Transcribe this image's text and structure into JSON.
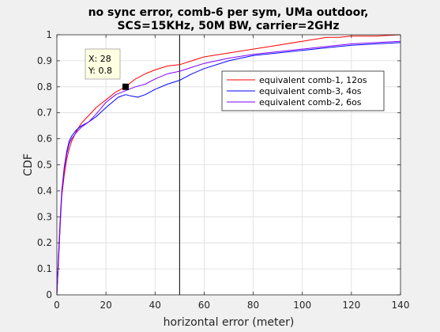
{
  "chart_data": {
    "type": "line",
    "title": [
      "no sync error, comb-6 per sym, UMa outdoor,",
      "SCS=15KHz, 50M BW, carrier=2GHz"
    ],
    "xlabel": "horizontal error (meter)",
    "ylabel": "CDF",
    "xlim": [
      0,
      140
    ],
    "ylim": [
      0,
      1
    ],
    "xticks": [
      "0",
      "20",
      "40",
      "60",
      "80",
      "100",
      "120",
      "140"
    ],
    "yticks": [
      "0",
      "0.1",
      "0.2",
      "0.3",
      "0.4",
      "0.5",
      "0.6",
      "0.7",
      "0.8",
      "0.9",
      "1"
    ],
    "grid": true,
    "legend_position": "upper-right",
    "vertical_reference_line_x": 50,
    "datatip": {
      "x": 28,
      "y": 0.8,
      "lines": [
        "X: 28",
        "Y: 0.8"
      ]
    },
    "series": [
      {
        "name": "equivalent comb-1, 12os",
        "color": "#ff0000",
        "points": [
          [
            0,
            0
          ],
          [
            0.5,
            0.1
          ],
          [
            1,
            0.2
          ],
          [
            1.5,
            0.3
          ],
          [
            2,
            0.38
          ],
          [
            3,
            0.46
          ],
          [
            4,
            0.52
          ],
          [
            5,
            0.56
          ],
          [
            6,
            0.59
          ],
          [
            8,
            0.63
          ],
          [
            10,
            0.66
          ],
          [
            13,
            0.69
          ],
          [
            16,
            0.72
          ],
          [
            20,
            0.75
          ],
          [
            24,
            0.78
          ],
          [
            28,
            0.8
          ],
          [
            32,
            0.83
          ],
          [
            36,
            0.85
          ],
          [
            40,
            0.865
          ],
          [
            45,
            0.88
          ],
          [
            50,
            0.885
          ],
          [
            55,
            0.9
          ],
          [
            60,
            0.915
          ],
          [
            70,
            0.93
          ],
          [
            80,
            0.945
          ],
          [
            90,
            0.96
          ],
          [
            100,
            0.975
          ],
          [
            110,
            0.99
          ],
          [
            115,
            0.99
          ],
          [
            120,
            0.995
          ],
          [
            130,
            0.995
          ],
          [
            140,
            1.0
          ]
        ]
      },
      {
        "name": "equivalent comb-3, 4os",
        "color": "#0000ff",
        "points": [
          [
            0,
            0
          ],
          [
            0.5,
            0.12
          ],
          [
            1,
            0.22
          ],
          [
            1.5,
            0.32
          ],
          [
            2,
            0.4
          ],
          [
            3,
            0.49
          ],
          [
            4,
            0.55
          ],
          [
            5,
            0.59
          ],
          [
            6,
            0.61
          ],
          [
            8,
            0.635
          ],
          [
            10,
            0.65
          ],
          [
            13,
            0.665
          ],
          [
            16,
            0.685
          ],
          [
            20,
            0.72
          ],
          [
            25,
            0.76
          ],
          [
            28,
            0.77
          ],
          [
            30,
            0.765
          ],
          [
            33,
            0.76
          ],
          [
            36,
            0.77
          ],
          [
            40,
            0.79
          ],
          [
            45,
            0.81
          ],
          [
            50,
            0.825
          ],
          [
            55,
            0.85
          ],
          [
            60,
            0.87
          ],
          [
            70,
            0.9
          ],
          [
            80,
            0.92
          ],
          [
            90,
            0.93
          ],
          [
            100,
            0.94
          ],
          [
            110,
            0.95
          ],
          [
            120,
            0.96
          ],
          [
            130,
            0.965
          ],
          [
            140,
            0.97
          ]
        ]
      },
      {
        "name": "equivalent comb-2, 6os",
        "color": "#8000ff",
        "points": [
          [
            0,
            0
          ],
          [
            0.5,
            0.1
          ],
          [
            1,
            0.2
          ],
          [
            1.5,
            0.3
          ],
          [
            2,
            0.39
          ],
          [
            3,
            0.48
          ],
          [
            4,
            0.54
          ],
          [
            5,
            0.58
          ],
          [
            6,
            0.6
          ],
          [
            8,
            0.625
          ],
          [
            10,
            0.645
          ],
          [
            13,
            0.665
          ],
          [
            16,
            0.695
          ],
          [
            20,
            0.74
          ],
          [
            24,
            0.77
          ],
          [
            28,
            0.785
          ],
          [
            32,
            0.8
          ],
          [
            36,
            0.81
          ],
          [
            40,
            0.83
          ],
          [
            45,
            0.85
          ],
          [
            50,
            0.86
          ],
          [
            55,
            0.875
          ],
          [
            60,
            0.89
          ],
          [
            70,
            0.91
          ],
          [
            80,
            0.925
          ],
          [
            90,
            0.935
          ],
          [
            100,
            0.945
          ],
          [
            110,
            0.955
          ],
          [
            120,
            0.965
          ],
          [
            130,
            0.97
          ],
          [
            140,
            0.975
          ]
        ]
      }
    ]
  }
}
